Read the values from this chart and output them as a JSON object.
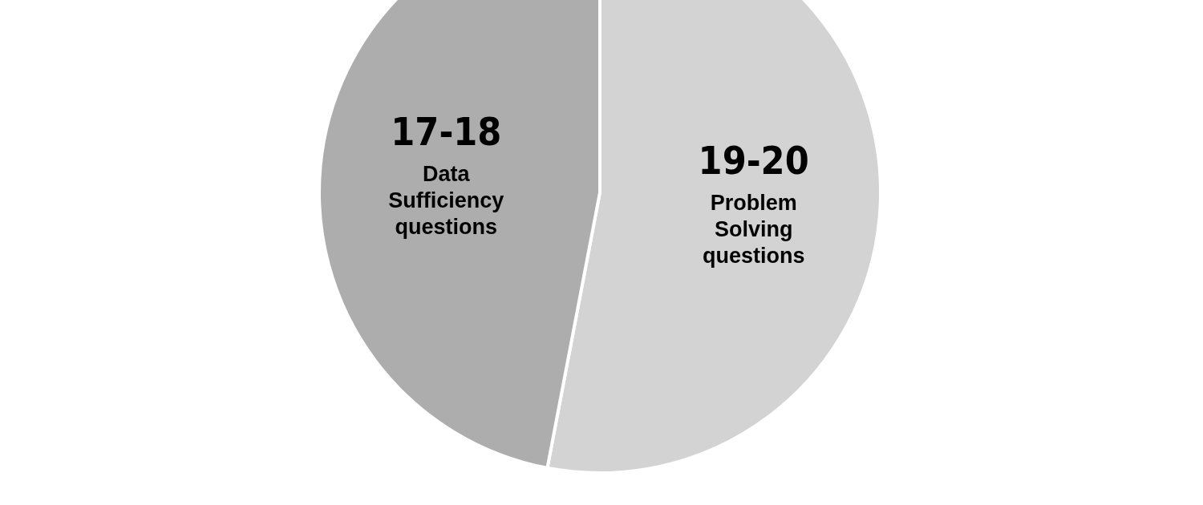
{
  "chart_data": {
    "type": "pie",
    "categories": [
      "Problem Solving questions",
      "Data Sufficiency questions"
    ],
    "values": [
      53,
      47
    ],
    "value_labels": [
      "19-20",
      "17-18"
    ],
    "colors": [
      "#d3d3d3",
      "#adadad"
    ],
    "legend": false
  }
}
